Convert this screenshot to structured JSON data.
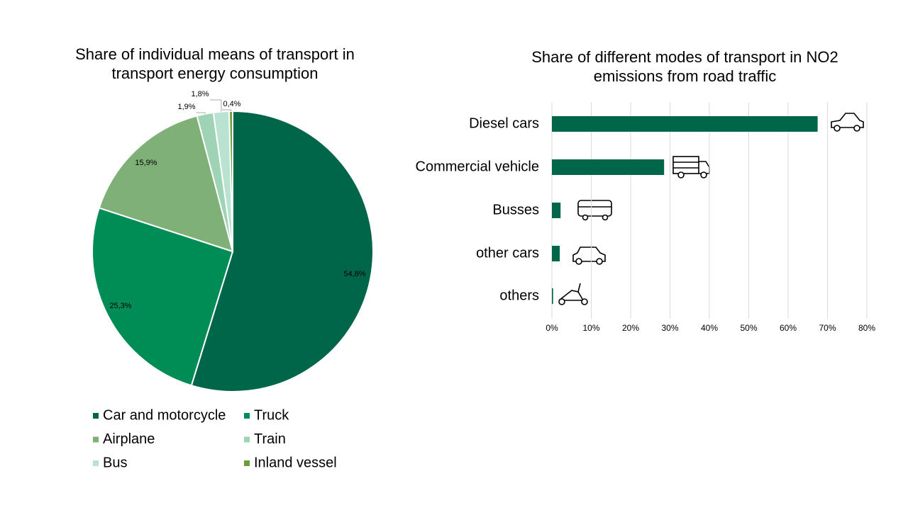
{
  "chart_data": [
    {
      "type": "pie",
      "title": "Share of individual means of transport in transport energy consumption",
      "categories": [
        "Car and motorcycle",
        "Truck",
        "Airplane",
        "Train",
        "Bus",
        "Inland vessel"
      ],
      "values": [
        54.8,
        25.3,
        15.9,
        1.9,
        1.8,
        0.4
      ],
      "value_labels": [
        "54,8%",
        "25,3%",
        "15,9%",
        "1,9%",
        "1,8%",
        "0,4%"
      ],
      "colors": [
        "#00664a",
        "#008c55",
        "#7fb077",
        "#9fd3b5",
        "#b9e2d0",
        "#6b9e3a"
      ],
      "legend": "bottom"
    },
    {
      "type": "hbar",
      "title": "Share of different modes of transport in NO2 emissions from road traffic",
      "categories": [
        "Diesel cars",
        "Commercial vehicle",
        "Busses",
        "other cars",
        "others"
      ],
      "values": [
        67.5,
        28.5,
        2.2,
        2.0,
        0.3
      ],
      "color": "#00664a",
      "xlim": [
        0,
        80
      ],
      "xticks": [
        {
          "value": 0,
          "label": "0%"
        },
        {
          "value": 10,
          "label": "10%"
        },
        {
          "value": 20,
          "label": "20%"
        },
        {
          "value": 30,
          "label": "30%"
        },
        {
          "value": 40,
          "label": "40%"
        },
        {
          "value": 50,
          "label": "50%"
        },
        {
          "value": 60,
          "label": "60%"
        },
        {
          "value": 70,
          "label": "70%"
        },
        {
          "value": 80,
          "label": "80%"
        }
      ],
      "grid": true
    }
  ]
}
